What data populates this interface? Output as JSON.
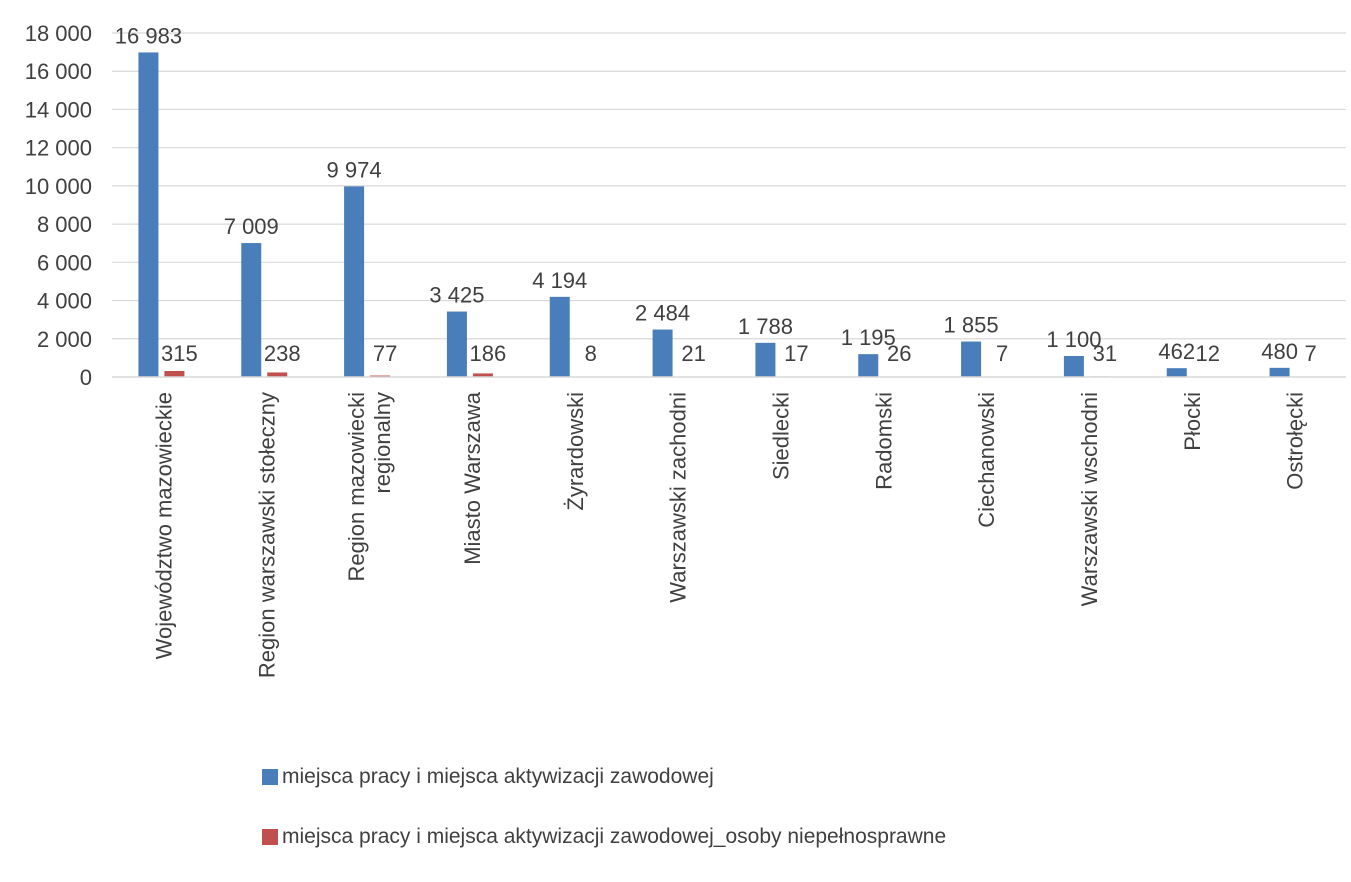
{
  "chart_data": {
    "type": "bar",
    "categories": [
      [
        "Województwo mazowieckie"
      ],
      [
        "Region warszawski stołeczny"
      ],
      [
        "Region mazowiecki",
        "regionalny"
      ],
      [
        "Miasto Warszawa"
      ],
      [
        "Żyrardowski"
      ],
      [
        "Warszawski zachodni"
      ],
      [
        "Siedlecki"
      ],
      [
        "Radomski"
      ],
      [
        "Ciechanowski"
      ],
      [
        "Warszawski wschodni"
      ],
      [
        "Płocki"
      ],
      [
        "Ostrołęcki"
      ]
    ],
    "series": [
      {
        "name": "miejsca pracy i miejsca aktywizacji zawodowej",
        "color": "#4a7ebb",
        "values": [
          16983,
          7009,
          9974,
          3425,
          4194,
          2484,
          1788,
          1195,
          1855,
          1100,
          462,
          480
        ],
        "labels": [
          "16 983",
          "7 009",
          "9 974",
          "3 425",
          "4 194",
          "2 484",
          "1 788",
          "1 195",
          "1 855",
          "1 100",
          "462",
          "480"
        ]
      },
      {
        "name": "miejsca pracy i miejsca aktywizacji zawodowej_osoby niepełnosprawne",
        "color": "#c0504d",
        "values": [
          315,
          238,
          77,
          186,
          8,
          21,
          17,
          26,
          7,
          31,
          12,
          7
        ],
        "labels": [
          "315",
          "238",
          "77",
          "186",
          "8",
          "21",
          "17",
          "26",
          "7",
          "31",
          "12",
          "7"
        ]
      }
    ],
    "y_ticks": [
      "0",
      "2 000",
      "4 000",
      "6 000",
      "8 000",
      "10 000",
      "12 000",
      "14 000",
      "16 000",
      "18 000"
    ],
    "ylim": [
      0,
      18000
    ],
    "grid": true,
    "legend_position": "bottom",
    "title": "",
    "xlabel": "",
    "ylabel": ""
  }
}
